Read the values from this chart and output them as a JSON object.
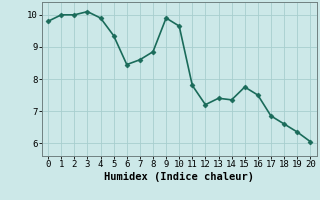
{
  "x": [
    0,
    1,
    2,
    3,
    4,
    5,
    6,
    7,
    8,
    9,
    10,
    11,
    12,
    13,
    14,
    15,
    16,
    17,
    18,
    19,
    20
  ],
  "y": [
    9.8,
    10.0,
    10.0,
    10.1,
    9.9,
    9.35,
    8.45,
    8.6,
    8.85,
    9.9,
    9.65,
    7.8,
    7.2,
    7.4,
    7.35,
    7.75,
    7.5,
    6.85,
    6.6,
    6.35,
    6.05
  ],
  "line_color": "#1a6b5a",
  "marker": "D",
  "marker_size": 2.5,
  "bg_color": "#cce8e8",
  "grid_color": "#a8cece",
  "axis_color": "#708080",
  "xlabel": "Humidex (Indice chaleur)",
  "xlabel_fontsize": 7.5,
  "ylim": [
    5.6,
    10.4
  ],
  "xlim": [
    -0.5,
    20.5
  ],
  "yticks": [
    6,
    7,
    8,
    9,
    10
  ],
  "xticks": [
    0,
    1,
    2,
    3,
    4,
    5,
    6,
    7,
    8,
    9,
    10,
    11,
    12,
    13,
    14,
    15,
    16,
    17,
    18,
    19,
    20
  ],
  "tick_fontsize": 6.5,
  "linewidth": 1.2
}
